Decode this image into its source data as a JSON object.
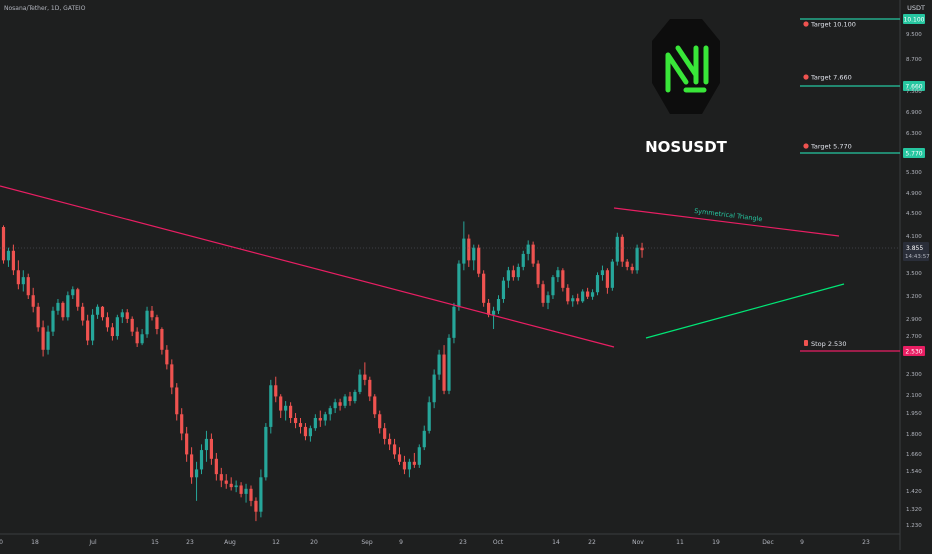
{
  "header": {
    "symbol_line": "Nosana/Tether, 1D, GATEIO"
  },
  "currency": "USDT",
  "logo": {
    "ticker": "NOSUSDT"
  },
  "colors": {
    "background": "#1e1f1f",
    "up": "#26a69a",
    "down": "#ef5350",
    "trendline": "#e91e63",
    "support": "#00e676",
    "target": "#26c6a0",
    "stop": "#e91e63",
    "axis_text": "#b2b5be",
    "logo_green": "#39e639"
  },
  "chart_data": {
    "type": "candlestick",
    "y_axis": {
      "scale": "log",
      "ticks": [
        "10.100",
        "9.500",
        "8.700",
        "7.660",
        "7.500",
        "6.900",
        "6.300",
        "5.770",
        "5.300",
        "4.900",
        "4.500",
        "4.100",
        "3.855",
        "3.500",
        "3.200",
        "2.900",
        "2.700",
        "2.530",
        "2.300",
        "2.100",
        "1.950",
        "1.800",
        "1.660",
        "1.540",
        "1.420",
        "1.320",
        "1.230"
      ]
    },
    "x_axis": {
      "ticks": [
        "0",
        "18",
        "Jul",
        "15",
        "23",
        "Aug",
        "12",
        "20",
        "Sep",
        "9",
        "23",
        "Oct",
        "14",
        "22",
        "Nov",
        "11",
        "19",
        "Dec",
        "9",
        "23"
      ]
    },
    "last_price": {
      "value": "3.855",
      "countdown": "14:43:57"
    },
    "annotations": {
      "pattern_label": "Symmetrical Triangle",
      "targets": [
        {
          "label": "Target 10.100",
          "price": "10.100"
        },
        {
          "label": "Target 7.660",
          "price": "7.660"
        },
        {
          "label": "Target 5.770",
          "price": "5.770"
        }
      ],
      "stop": {
        "label": "Stop 2.530",
        "price": "2.530"
      }
    },
    "candles": [
      [
        4.25,
        4.28,
        3.65,
        3.7
      ],
      [
        3.7,
        3.9,
        3.6,
        3.85
      ],
      [
        3.85,
        3.95,
        3.48,
        3.55
      ],
      [
        3.55,
        3.7,
        3.28,
        3.35
      ],
      [
        3.35,
        3.55,
        3.25,
        3.45
      ],
      [
        3.45,
        3.5,
        3.15,
        3.2
      ],
      [
        3.2,
        3.3,
        2.98,
        3.05
      ],
      [
        3.05,
        3.1,
        2.75,
        2.8
      ],
      [
        2.8,
        2.88,
        2.48,
        2.55
      ],
      [
        2.55,
        2.82,
        2.5,
        2.75
      ],
      [
        2.75,
        3.05,
        2.7,
        3.0
      ],
      [
        3.0,
        3.15,
        2.95,
        3.1
      ],
      [
        3.1,
        3.12,
        2.88,
        2.92
      ],
      [
        2.92,
        3.25,
        2.88,
        3.2
      ],
      [
        3.2,
        3.32,
        3.15,
        3.28
      ],
      [
        3.28,
        3.3,
        3.0,
        3.05
      ],
      [
        3.05,
        3.1,
        2.82,
        2.88
      ],
      [
        2.88,
        2.95,
        2.6,
        2.65
      ],
      [
        2.65,
        3.02,
        2.6,
        2.95
      ],
      [
        2.95,
        3.08,
        2.9,
        3.05
      ],
      [
        3.05,
        3.06,
        2.88,
        2.92
      ],
      [
        2.92,
        2.98,
        2.75,
        2.8
      ],
      [
        2.8,
        2.85,
        2.65,
        2.7
      ],
      [
        2.7,
        2.95,
        2.66,
        2.92
      ],
      [
        2.92,
        3.02,
        2.85,
        2.98
      ],
      [
        2.98,
        3.02,
        2.85,
        2.9
      ],
      [
        2.9,
        2.93,
        2.7,
        2.75
      ],
      [
        2.75,
        2.8,
        2.58,
        2.62
      ],
      [
        2.62,
        2.78,
        2.6,
        2.72
      ],
      [
        2.72,
        3.05,
        2.68,
        3.0
      ],
      [
        3.0,
        3.06,
        2.88,
        2.92
      ],
      [
        2.92,
        2.95,
        2.72,
        2.78
      ],
      [
        2.78,
        2.8,
        2.5,
        2.55
      ],
      [
        2.55,
        2.6,
        2.35,
        2.4
      ],
      [
        2.4,
        2.45,
        2.12,
        2.18
      ],
      [
        2.18,
        2.22,
        1.9,
        1.95
      ],
      [
        1.95,
        2.0,
        1.75,
        1.8
      ],
      [
        1.8,
        1.85,
        1.6,
        1.65
      ],
      [
        1.65,
        1.7,
        1.46,
        1.5
      ],
      [
        1.5,
        1.6,
        1.36,
        1.55
      ],
      [
        1.55,
        1.72,
        1.52,
        1.68
      ],
      [
        1.68,
        1.82,
        1.6,
        1.76
      ],
      [
        1.76,
        1.8,
        1.58,
        1.62
      ],
      [
        1.62,
        1.66,
        1.48,
        1.52
      ],
      [
        1.52,
        1.56,
        1.44,
        1.48
      ],
      [
        1.48,
        1.52,
        1.43,
        1.46
      ],
      [
        1.46,
        1.5,
        1.42,
        1.44
      ],
      [
        1.44,
        1.48,
        1.41,
        1.45
      ],
      [
        1.45,
        1.47,
        1.38,
        1.4
      ],
      [
        1.4,
        1.46,
        1.35,
        1.43
      ],
      [
        1.43,
        1.45,
        1.33,
        1.36
      ],
      [
        1.36,
        1.38,
        1.25,
        1.3
      ],
      [
        1.3,
        1.55,
        1.27,
        1.5
      ],
      [
        1.5,
        1.88,
        1.48,
        1.85
      ],
      [
        1.85,
        2.25,
        1.8,
        2.2
      ],
      [
        2.2,
        2.28,
        2.05,
        2.1
      ],
      [
        2.1,
        2.12,
        1.92,
        1.98
      ],
      [
        1.98,
        2.06,
        1.9,
        2.02
      ],
      [
        2.02,
        2.05,
        1.88,
        1.92
      ],
      [
        1.92,
        1.96,
        1.84,
        1.88
      ],
      [
        1.88,
        1.92,
        1.8,
        1.85
      ],
      [
        1.85,
        1.88,
        1.75,
        1.78
      ],
      [
        1.78,
        1.86,
        1.74,
        1.84
      ],
      [
        1.84,
        1.95,
        1.82,
        1.92
      ],
      [
        1.92,
        1.98,
        1.85,
        1.9
      ],
      [
        1.9,
        1.97,
        1.86,
        1.95
      ],
      [
        1.95,
        2.02,
        1.9,
        2.0
      ],
      [
        2.0,
        2.08,
        1.96,
        2.05
      ],
      [
        2.05,
        2.08,
        1.98,
        2.02
      ],
      [
        2.02,
        2.12,
        2.0,
        2.1
      ],
      [
        2.1,
        2.14,
        2.02,
        2.06
      ],
      [
        2.06,
        2.16,
        2.04,
        2.14
      ],
      [
        2.14,
        2.35,
        2.12,
        2.3
      ],
      [
        2.3,
        2.42,
        2.2,
        2.25
      ],
      [
        2.25,
        2.28,
        2.06,
        2.1
      ],
      [
        2.1,
        2.12,
        1.92,
        1.95
      ],
      [
        1.95,
        1.98,
        1.8,
        1.84
      ],
      [
        1.84,
        1.88,
        1.72,
        1.76
      ],
      [
        1.76,
        1.8,
        1.68,
        1.72
      ],
      [
        1.72,
        1.76,
        1.62,
        1.65
      ],
      [
        1.65,
        1.7,
        1.58,
        1.6
      ],
      [
        1.6,
        1.64,
        1.52,
        1.55
      ],
      [
        1.55,
        1.62,
        1.5,
        1.6
      ],
      [
        1.6,
        1.66,
        1.56,
        1.58
      ],
      [
        1.58,
        1.72,
        1.56,
        1.7
      ],
      [
        1.7,
        1.86,
        1.68,
        1.82
      ],
      [
        1.82,
        2.1,
        1.8,
        2.05
      ],
      [
        2.05,
        2.35,
        2.0,
        2.3
      ],
      [
        2.3,
        2.55,
        2.25,
        2.5
      ],
      [
        2.5,
        2.6,
        2.12,
        2.15
      ],
      [
        2.15,
        2.72,
        2.12,
        2.68
      ],
      [
        2.68,
        3.1,
        2.62,
        3.05
      ],
      [
        3.05,
        3.7,
        3.0,
        3.65
      ],
      [
        3.65,
        4.35,
        3.55,
        4.05
      ],
      [
        4.05,
        4.12,
        3.6,
        3.7
      ],
      [
        3.7,
        3.95,
        3.55,
        3.9
      ],
      [
        3.9,
        3.95,
        3.45,
        3.5
      ],
      [
        3.5,
        3.55,
        3.05,
        3.1
      ],
      [
        3.1,
        3.15,
        2.92,
        2.95
      ],
      [
        2.95,
        3.05,
        2.78,
        3.0
      ],
      [
        3.0,
        3.2,
        2.96,
        3.15
      ],
      [
        3.15,
        3.45,
        3.1,
        3.4
      ],
      [
        3.4,
        3.6,
        3.3,
        3.55
      ],
      [
        3.55,
        3.62,
        3.4,
        3.45
      ],
      [
        3.45,
        3.65,
        3.4,
        3.6
      ],
      [
        3.6,
        3.85,
        3.55,
        3.8
      ],
      [
        3.8,
        4.02,
        3.7,
        3.95
      ],
      [
        3.95,
        4.0,
        3.6,
        3.65
      ],
      [
        3.65,
        3.7,
        3.3,
        3.35
      ],
      [
        3.35,
        3.4,
        3.05,
        3.1
      ],
      [
        3.1,
        3.25,
        3.02,
        3.2
      ],
      [
        3.2,
        3.48,
        3.15,
        3.45
      ],
      [
        3.45,
        3.6,
        3.38,
        3.55
      ],
      [
        3.55,
        3.58,
        3.25,
        3.3
      ],
      [
        3.3,
        3.35,
        3.08,
        3.12
      ],
      [
        3.12,
        3.2,
        3.05,
        3.16
      ],
      [
        3.16,
        3.22,
        3.08,
        3.12
      ],
      [
        3.12,
        3.28,
        3.1,
        3.25
      ],
      [
        3.25,
        3.3,
        3.15,
        3.18
      ],
      [
        3.18,
        3.28,
        3.14,
        3.24
      ],
      [
        3.24,
        3.52,
        3.2,
        3.48
      ],
      [
        3.48,
        3.62,
        3.4,
        3.55
      ],
      [
        3.55,
        3.58,
        3.22,
        3.3
      ],
      [
        3.3,
        3.72,
        3.26,
        3.68
      ],
      [
        3.68,
        4.15,
        3.62,
        4.08
      ],
      [
        4.08,
        4.12,
        3.6,
        3.68
      ],
      [
        3.68,
        3.72,
        3.55,
        3.6
      ],
      [
        3.6,
        3.65,
        3.5,
        3.55
      ],
      [
        3.55,
        3.95,
        3.5,
        3.9
      ],
      [
        3.9,
        3.98,
        3.74,
        3.86
      ]
    ]
  }
}
